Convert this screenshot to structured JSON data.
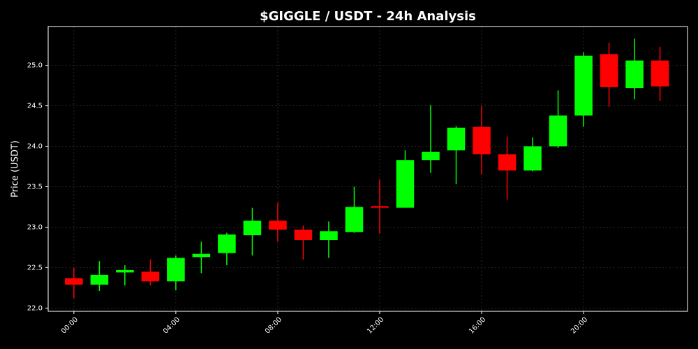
{
  "chart_data": {
    "type": "candlestick",
    "title": "$GIGGLE / USDT - 24h Analysis",
    "y_label": "Price (USDT)",
    "x": [
      0,
      1,
      2,
      3,
      4,
      5,
      6,
      7,
      8,
      9,
      10,
      11,
      12,
      13,
      14,
      15,
      16,
      17,
      18,
      19,
      20,
      21,
      22,
      23
    ],
    "open": [
      22.37,
      22.29,
      22.44,
      22.45,
      22.33,
      22.63,
      22.68,
      22.9,
      23.08,
      22.97,
      22.84,
      22.94,
      23.26,
      23.24,
      23.83,
      23.95,
      24.24,
      23.9,
      23.7,
      24.0,
      24.38,
      25.14,
      24.72,
      25.06
    ],
    "high": [
      22.5,
      22.58,
      22.53,
      22.6,
      22.65,
      22.82,
      22.93,
      23.24,
      23.3,
      23.02,
      23.07,
      23.5,
      23.59,
      23.95,
      24.51,
      24.25,
      24.5,
      24.12,
      24.11,
      24.69,
      25.16,
      25.28,
      25.33,
      25.23
    ],
    "low": [
      22.12,
      22.21,
      22.28,
      22.28,
      22.22,
      22.43,
      22.53,
      22.65,
      22.82,
      22.6,
      22.62,
      22.93,
      22.92,
      23.24,
      23.67,
      23.53,
      23.65,
      23.34,
      23.69,
      23.98,
      24.24,
      24.49,
      24.58,
      24.56
    ],
    "close": [
      22.29,
      22.41,
      22.47,
      22.33,
      22.62,
      22.67,
      22.91,
      23.08,
      22.97,
      22.84,
      22.95,
      23.25,
      23.24,
      23.83,
      23.93,
      24.23,
      23.9,
      23.7,
      24.0,
      24.38,
      25.12,
      24.73,
      25.06,
      24.74
    ],
    "up_color": "#00ff00",
    "down_color": "#ff0000",
    "xlim": [
      -1.01,
      24.08
    ],
    "xticks": [
      {
        "value": 0,
        "label": "00:00"
      },
      {
        "value": 4,
        "label": "04:00"
      },
      {
        "value": 8,
        "label": "08:00"
      },
      {
        "value": 12,
        "label": "12:00"
      },
      {
        "value": 16,
        "label": "16:00"
      },
      {
        "value": 20,
        "label": "20:00"
      }
    ],
    "ylim": [
      21.96,
      25.48
    ],
    "yticks": [
      {
        "value": 22,
        "label": "22.0"
      },
      22.5,
      {
        "value": 23,
        "label": "23.0"
      },
      23.5,
      {
        "value": 24,
        "label": "24.0"
      },
      24.5,
      {
        "value": 25,
        "label": "25.0"
      }
    ],
    "grid": true
  }
}
